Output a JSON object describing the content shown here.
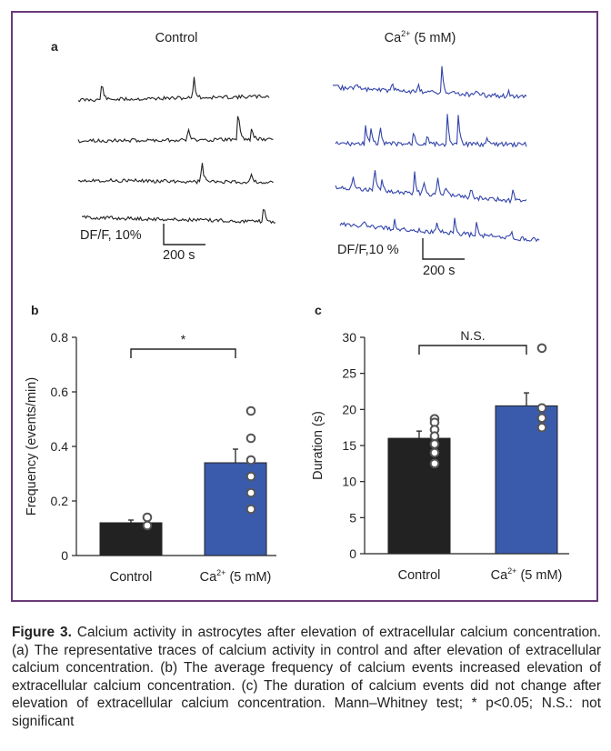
{
  "panel_a": {
    "label": "a",
    "control_title": "Control",
    "ca_title_base": "Ca",
    "ca_title_sup": "2+",
    "ca_title_rest": " (5 mM)",
    "control_scale_y": "DF/F, 10%",
    "control_scale_x": "200 s",
    "ca_scale_y": "DF/F,10 %",
    "ca_scale_x": "200 s",
    "colors": {
      "control": "#222222",
      "ca": "#3344aa"
    }
  },
  "chart_data": [
    {
      "panel": "b",
      "type": "bar",
      "categories": [
        "Control",
        "Ca2+ (5 mM)"
      ],
      "category_labels": {
        "control": "Control",
        "ca_base": "Ca",
        "ca_sup": "2+",
        "ca_rest": " (5 mM)"
      },
      "values": [
        0.12,
        0.34
      ],
      "errors": [
        0.01,
        0.05
      ],
      "points": [
        [
          0.14,
          0.11
        ],
        [
          0.53,
          0.43,
          0.35,
          0.29,
          0.23,
          0.17
        ]
      ],
      "ylabel": "Frequency (events/min)",
      "ylim": [
        0,
        0.8
      ],
      "yticks": [
        "0",
        "0.2",
        "0.4",
        "0.6",
        "0.8"
      ],
      "yticks_values": [
        0,
        0.2,
        0.4,
        0.6,
        0.8
      ],
      "significance": "*",
      "colors": [
        "#222222",
        "#3a5bab"
      ]
    },
    {
      "panel": "c",
      "type": "bar",
      "categories": [
        "Control",
        "Ca2+ (5 mM)"
      ],
      "category_labels": {
        "control": "Control",
        "ca_base": "Ca",
        "ca_sup": "2+",
        "ca_rest": " (5 mM)"
      },
      "values": [
        16,
        20.5
      ],
      "errors": [
        1,
        1.8
      ],
      "points": [
        [
          18.7,
          18.2,
          17.2,
          16.3,
          15.2,
          14.0,
          12.5
        ],
        [
          28.5,
          20.2,
          18.8,
          17.5
        ]
      ],
      "ylabel": "Duration (s)",
      "ylim": [
        0,
        30
      ],
      "yticks": [
        "0",
        "5",
        "10",
        "15",
        "20",
        "25",
        "30"
      ],
      "yticks_values": [
        0,
        5,
        10,
        15,
        20,
        25,
        30
      ],
      "significance": "N.S.",
      "colors": [
        "#222222",
        "#3a5bab"
      ]
    }
  ],
  "caption": {
    "label": "Figure 3.",
    "text": " Calcium activity in astrocytes after elevation of extracellular calcium concentration. (a) The representative traces of calcium activity in control and after elevation of extracellular calcium concentration. (b) The average frequency of calcium events increased elevation of extracellular calcium concentration. (c) The duration of calcium events did not change after elevation of extracellular calcium concentration. Mann–Whitney test; * p<0.05; N.S.: not significant"
  }
}
